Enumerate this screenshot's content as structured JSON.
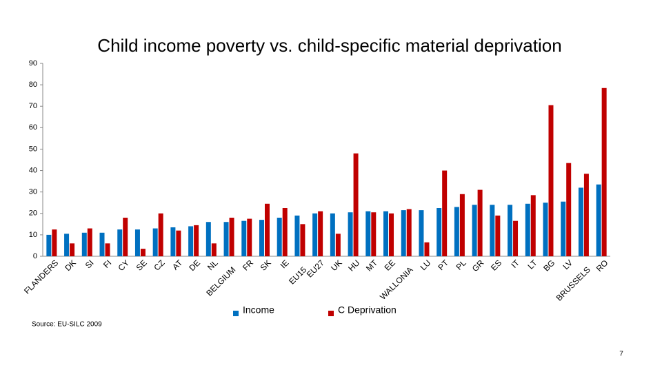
{
  "chart_data": {
    "type": "bar",
    "title": "Child income poverty vs. child-specific material deprivation",
    "categories": [
      "FLANDERS",
      "DK",
      "SI",
      "FI",
      "CY",
      "SE",
      "CZ",
      "AT",
      "DE",
      "NL",
      "BELGIUM",
      "FR",
      "SK",
      "IE",
      "EU15",
      "EU27",
      "UK",
      "HU",
      "MT",
      "EE",
      "WALLONIA",
      "LU",
      "PT",
      "PL",
      "GR",
      "ES",
      "IT",
      "LT",
      "BG",
      "LV",
      "BRUSSELS",
      "RO"
    ],
    "series": [
      {
        "name": "Income",
        "color": "#0070c0",
        "values": [
          10,
          10.5,
          11,
          11,
          12.5,
          12.5,
          13,
          13.5,
          14,
          16,
          16,
          16.5,
          17,
          18,
          19,
          20,
          20,
          20.5,
          21,
          21,
          21.5,
          21.5,
          22.5,
          23,
          24,
          24,
          24,
          24.5,
          25,
          25.5,
          32,
          33.5
        ]
      },
      {
        "name": "C Deprivation",
        "color": "#c00000",
        "values": [
          12.5,
          6,
          13,
          6,
          18,
          3.5,
          20,
          12,
          14.5,
          6,
          18,
          17.5,
          24.5,
          22.5,
          15,
          21,
          10.5,
          48,
          20.5,
          20,
          22,
          6.5,
          40,
          29,
          31,
          19,
          16.5,
          28.5,
          70.5,
          43.5,
          38.5,
          78.5
        ]
      }
    ],
    "ylim": [
      0,
      90
    ],
    "yticks": [
      0,
      10,
      20,
      30,
      40,
      50,
      60,
      70,
      80,
      90
    ],
    "grid": false,
    "source": "Source: EU-SILC 2009",
    "page_number": "7"
  }
}
